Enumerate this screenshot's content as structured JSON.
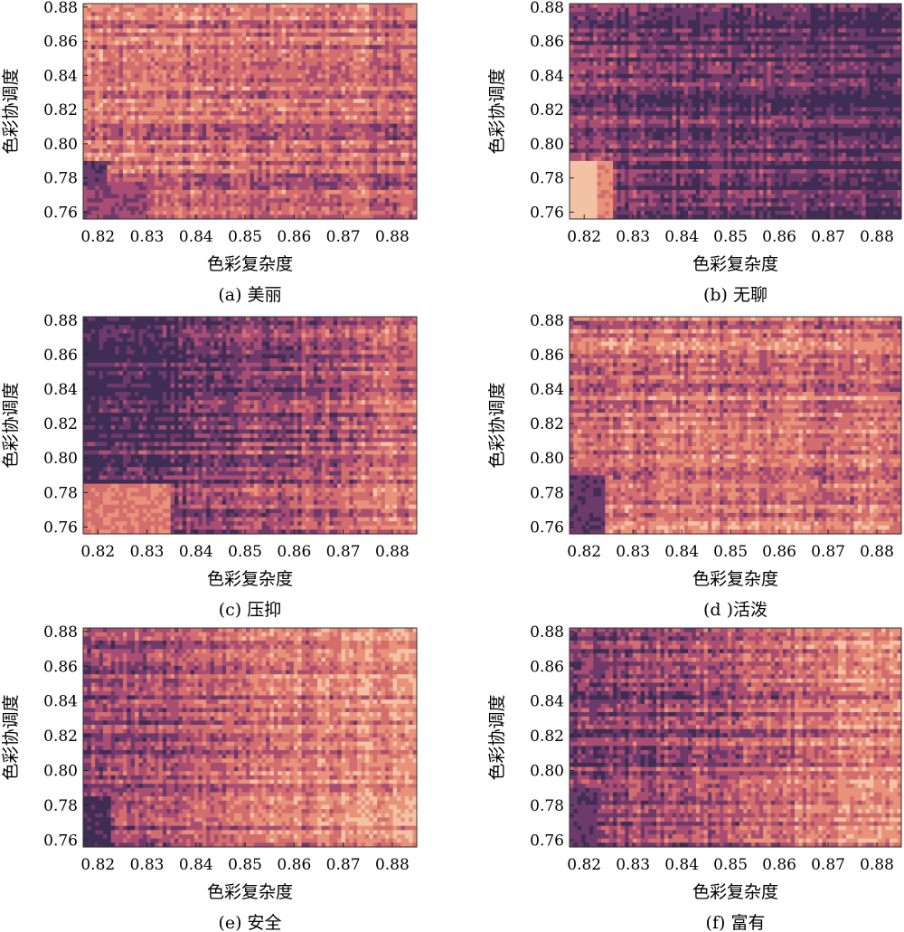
{
  "chart_data": [
    {
      "type": "heatmap",
      "caption": "(a) 美丽",
      "xlabel": "色彩复杂度",
      "ylabel": "色彩协调度",
      "xlim": [
        0.817,
        0.885
      ],
      "ylim": [
        0.756,
        0.882
      ],
      "xticks": [
        "0.82",
        "0.83",
        "0.84",
        "0.85",
        "0.86",
        "0.87",
        "0.88"
      ],
      "yticks": [
        "0.76",
        "0.78",
        "0.80",
        "0.82",
        "0.84",
        "0.86",
        "0.88"
      ],
      "field": {
        "base": 0.45,
        "gx": 0.05,
        "gy": -0.05,
        "noise": 0.3,
        "seed": 11,
        "patches": [
          {
            "x": [
              0.817,
              0.822
            ],
            "y": [
              0.756,
              0.79
            ],
            "v": 0.8
          },
          {
            "x": [
              0.817,
              0.83
            ],
            "y": [
              0.756,
              0.775
            ],
            "v": 0.65
          }
        ]
      },
      "colors": [
        "#f3c2a4",
        "#e8927a",
        "#d46e6e",
        "#a94e72",
        "#6d3a6b",
        "#3f2d54"
      ]
    },
    {
      "type": "heatmap",
      "caption": "(b) 无聊",
      "xlabel": "色彩复杂度",
      "ylabel": "色彩协调度",
      "xlim": [
        0.817,
        0.885
      ],
      "ylim": [
        0.756,
        0.882
      ],
      "xticks": [
        "0.82",
        "0.83",
        "0.84",
        "0.85",
        "0.86",
        "0.87",
        "0.88"
      ],
      "yticks": [
        "0.76",
        "0.78",
        "0.80",
        "0.82",
        "0.84",
        "0.86",
        "0.88"
      ],
      "field": {
        "base": 0.78,
        "gx": 0.1,
        "gy": 0.02,
        "noise": 0.25,
        "seed": 23,
        "patches": [
          {
            "x": [
              0.817,
              0.823
            ],
            "y": [
              0.756,
              0.79
            ],
            "v": 0.05
          },
          {
            "x": [
              0.823,
              0.826
            ],
            "y": [
              0.756,
              0.79
            ],
            "v": 0.3
          }
        ]
      },
      "colors": [
        "#f3c2a4",
        "#e8927a",
        "#d46e6e",
        "#a94e72",
        "#6d3a6b",
        "#3f2d54"
      ]
    },
    {
      "type": "heatmap",
      "caption": "(c) 压抑",
      "xlabel": "色彩复杂度",
      "ylabel": "色彩协调度",
      "xlim": [
        0.817,
        0.885
      ],
      "ylim": [
        0.756,
        0.882
      ],
      "xticks": [
        "0.82",
        "0.83",
        "0.84",
        "0.85",
        "0.86",
        "0.87",
        "0.88"
      ],
      "yticks": [
        "0.76",
        "0.78",
        "0.80",
        "0.82",
        "0.84",
        "0.86",
        "0.88"
      ],
      "field": {
        "base": 0.68,
        "gx": -0.55,
        "gy": 0.2,
        "noise": 0.3,
        "seed": 37,
        "patches": [
          {
            "x": [
              0.817,
              0.835
            ],
            "y": [
              0.756,
              0.785
            ],
            "v": 0.35
          }
        ]
      },
      "colors": [
        "#f3c2a4",
        "#e8927a",
        "#d46e6e",
        "#a94e72",
        "#6d3a6b",
        "#3f2d54"
      ]
    },
    {
      "type": "heatmap",
      "caption": "(d )活泼",
      "xlabel": "色彩复杂度",
      "ylabel": "色彩协调度",
      "xlim": [
        0.817,
        0.885
      ],
      "ylim": [
        0.756,
        0.882
      ],
      "xticks": [
        "0.82",
        "0.83",
        "0.84",
        "0.85",
        "0.86",
        "0.87",
        "0.88"
      ],
      "yticks": [
        "0.76",
        "0.78",
        "0.80",
        "0.82",
        "0.84",
        "0.86",
        "0.88"
      ],
      "field": {
        "base": 0.4,
        "gx": 0.0,
        "gy": 0.0,
        "noise": 0.3,
        "seed": 41,
        "patches": [
          {
            "x": [
              0.817,
              0.824
            ],
            "y": [
              0.756,
              0.79
            ],
            "v": 0.78
          }
        ]
      },
      "colors": [
        "#f3c2a4",
        "#e8927a",
        "#d46e6e",
        "#a94e72",
        "#6d3a6b",
        "#3f2d54"
      ]
    },
    {
      "type": "heatmap",
      "caption": "(e) 安全",
      "xlabel": "色彩复杂度",
      "ylabel": "色彩协调度",
      "xlim": [
        0.817,
        0.885
      ],
      "ylim": [
        0.756,
        0.882
      ],
      "xticks": [
        "0.82",
        "0.83",
        "0.84",
        "0.85",
        "0.86",
        "0.87",
        "0.88"
      ],
      "yticks": [
        "0.76",
        "0.78",
        "0.80",
        "0.82",
        "0.84",
        "0.86",
        "0.88"
      ],
      "field": {
        "base": 0.48,
        "gx": -0.45,
        "gy": 0.0,
        "noise": 0.3,
        "seed": 53,
        "patches": [
          {
            "x": [
              0.817,
              0.823
            ],
            "y": [
              0.756,
              0.785
            ],
            "v": 0.9
          }
        ]
      },
      "colors": [
        "#f3c2a4",
        "#e8927a",
        "#d46e6e",
        "#a94e72",
        "#6d3a6b",
        "#3f2d54"
      ]
    },
    {
      "type": "heatmap",
      "caption": "(f) 富有",
      "xlabel": "色彩复杂度",
      "ylabel": "色彩协调度",
      "xlim": [
        0.817,
        0.885
      ],
      "ylim": [
        0.756,
        0.882
      ],
      "xticks": [
        "0.82",
        "0.83",
        "0.84",
        "0.85",
        "0.86",
        "0.87",
        "0.88"
      ],
      "yticks": [
        "0.76",
        "0.78",
        "0.80",
        "0.82",
        "0.84",
        "0.86",
        "0.88"
      ],
      "field": {
        "base": 0.55,
        "gx": -0.5,
        "gy": 0.0,
        "noise": 0.3,
        "seed": 67,
        "patches": [
          {
            "x": [
              0.817,
              0.823
            ],
            "y": [
              0.756,
              0.79
            ],
            "v": 0.78
          }
        ]
      },
      "colors": [
        "#f3c2a4",
        "#e8927a",
        "#d46e6e",
        "#a94e72",
        "#6d3a6b",
        "#3f2d54"
      ]
    }
  ]
}
